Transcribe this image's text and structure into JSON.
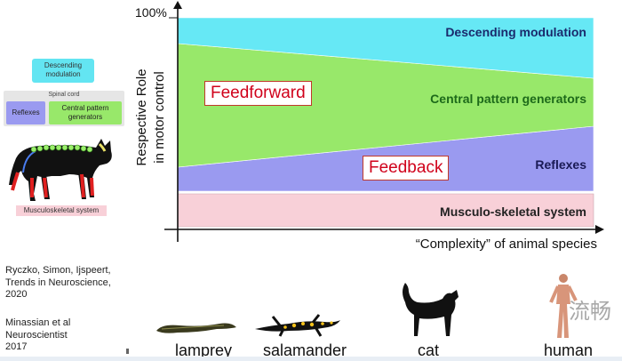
{
  "left_schematic": {
    "descending": "Descending modulation",
    "spinal_cord": "Spinal cord",
    "reflexes": "Reflexes",
    "cpg": "Central pattern generators",
    "musculo": "Musculoskeletal system"
  },
  "chart": {
    "y_top": "100%",
    "y_label_line1": "Respective Role",
    "y_label_line2": "in motor control",
    "x_label": "“Complexity” of animal species",
    "bands": {
      "descending": "Descending modulation",
      "cpg": "Central pattern generators",
      "reflexes": "Reflexes",
      "musculo": "Musculo-skeletal system"
    },
    "feedforward": "Feedforward",
    "feedback": "Feedback",
    "colors": {
      "descending": "#66e8f5",
      "cpg": "#98e86a",
      "reflexes": "#9a9af0",
      "musculo": "#f8d0d8"
    }
  },
  "citations": {
    "c1": [
      "Ryczko, Simon, Ijspeert,",
      "Trends in Neuroscience,",
      "2020"
    ],
    "c2": [
      "Minassian et al",
      "Neuroscientist",
      "2017"
    ]
  },
  "species": [
    "lamprey",
    "salamander",
    "cat",
    "human"
  ],
  "watermark": "流畅"
}
